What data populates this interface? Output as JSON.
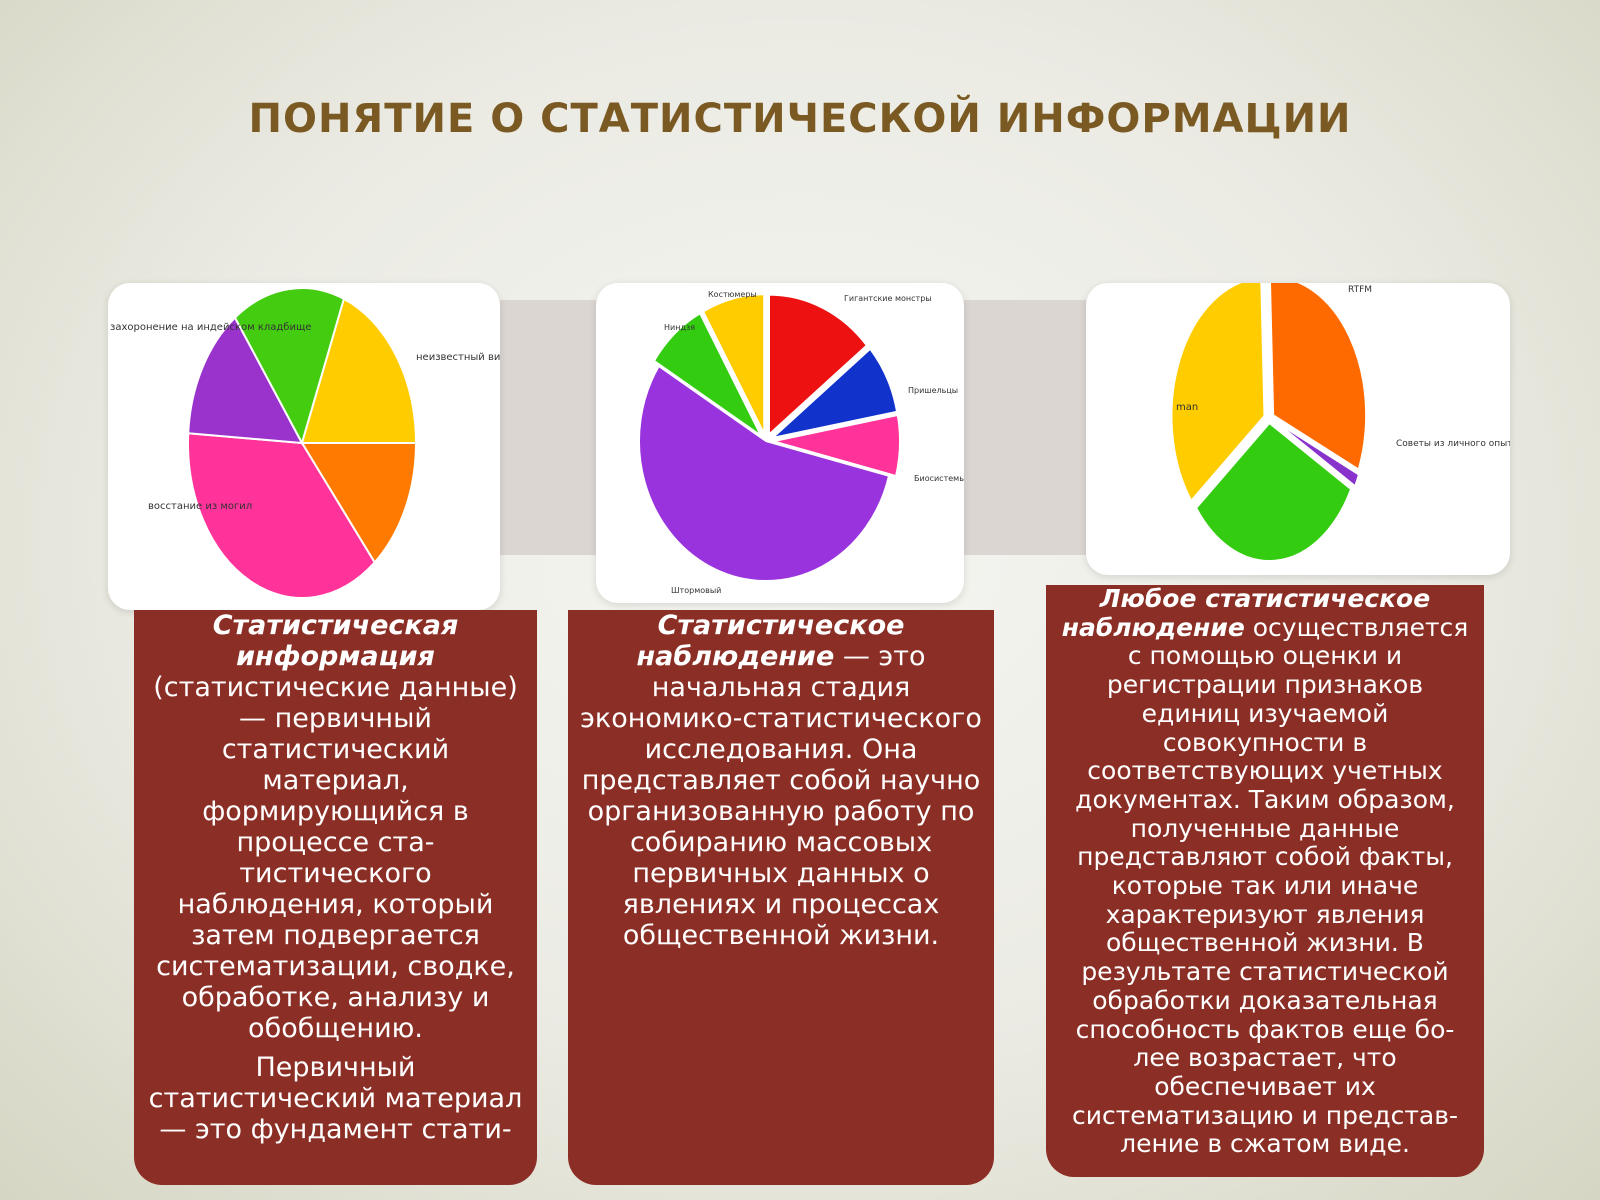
{
  "slide": {
    "title": "ПОНЯТИЕ О СТАТИСТИЧЕСКОЙ ИНФОРМАЦИИ"
  },
  "chart_data": [
    {
      "type": "pie",
      "labels": [
        "неизвестный вирус",
        "",
        "восстание из могил",
        "захоронение на индейском кладбище",
        ""
      ],
      "values": [
        14,
        37,
        14,
        16,
        19
      ],
      "colors": [
        "#ff7a00",
        "#ff3399",
        "#9933cc",
        "#44cc11",
        "#ffcc00"
      ]
    },
    {
      "type": "pie",
      "labels": [
        "Гигантские монстры",
        "Пришельцы",
        "Биосистемы",
        "Штормовый",
        "Ниндзя",
        "Костюмеры"
      ],
      "values": [
        14,
        8,
        7,
        55,
        8,
        8
      ],
      "colors": [
        "#ee1111",
        "#1133cc",
        "#ff3399",
        "#9933dd",
        "#33cc11",
        "#ffcc00"
      ]
    },
    {
      "type": "pie",
      "labels": [
        "RTFM",
        "Советы из личного опыта",
        "",
        "man"
      ],
      "values": [
        32,
        1.5,
        31.5,
        35
      ],
      "colors": [
        "#ff6a00",
        "#8833cc",
        "#33cc11",
        "#ffcc00"
      ]
    }
  ],
  "cards": [
    {
      "bold": "Статистическая информация",
      "text": "(статистические данные) — первичный статистический материал, формирующийся в процессе ста-тистического наблюдения, который затем подвергается систематизации, сводке, обработке, анализу и обобщению.",
      "text2": "Первичный статистический материал — это фундамент стати-"
    },
    {
      "bold": "Статистическое наблюдение",
      "text": " — это начальная стадия экономико-статистического исследования. Она представляет собой научно организованную работу по собиранию массовых первичных данных о явлениях и процессах общественной жизни."
    },
    {
      "bold": "Любое статистическое наблюдение",
      "text": " осуществляется с помощью оценки и регистрации признаков единиц изучаемой совокупности в соответствующих учетных документах. Таким образом, полученные данные представляют собой факты, которые так или иначе характеризуют явления общественной жизни. В результате статистической обработки доказательная способность фактов еще бо-лее возрастает, что обеспечивает их систематизацию и представ-ление в сжатом виде."
    }
  ]
}
